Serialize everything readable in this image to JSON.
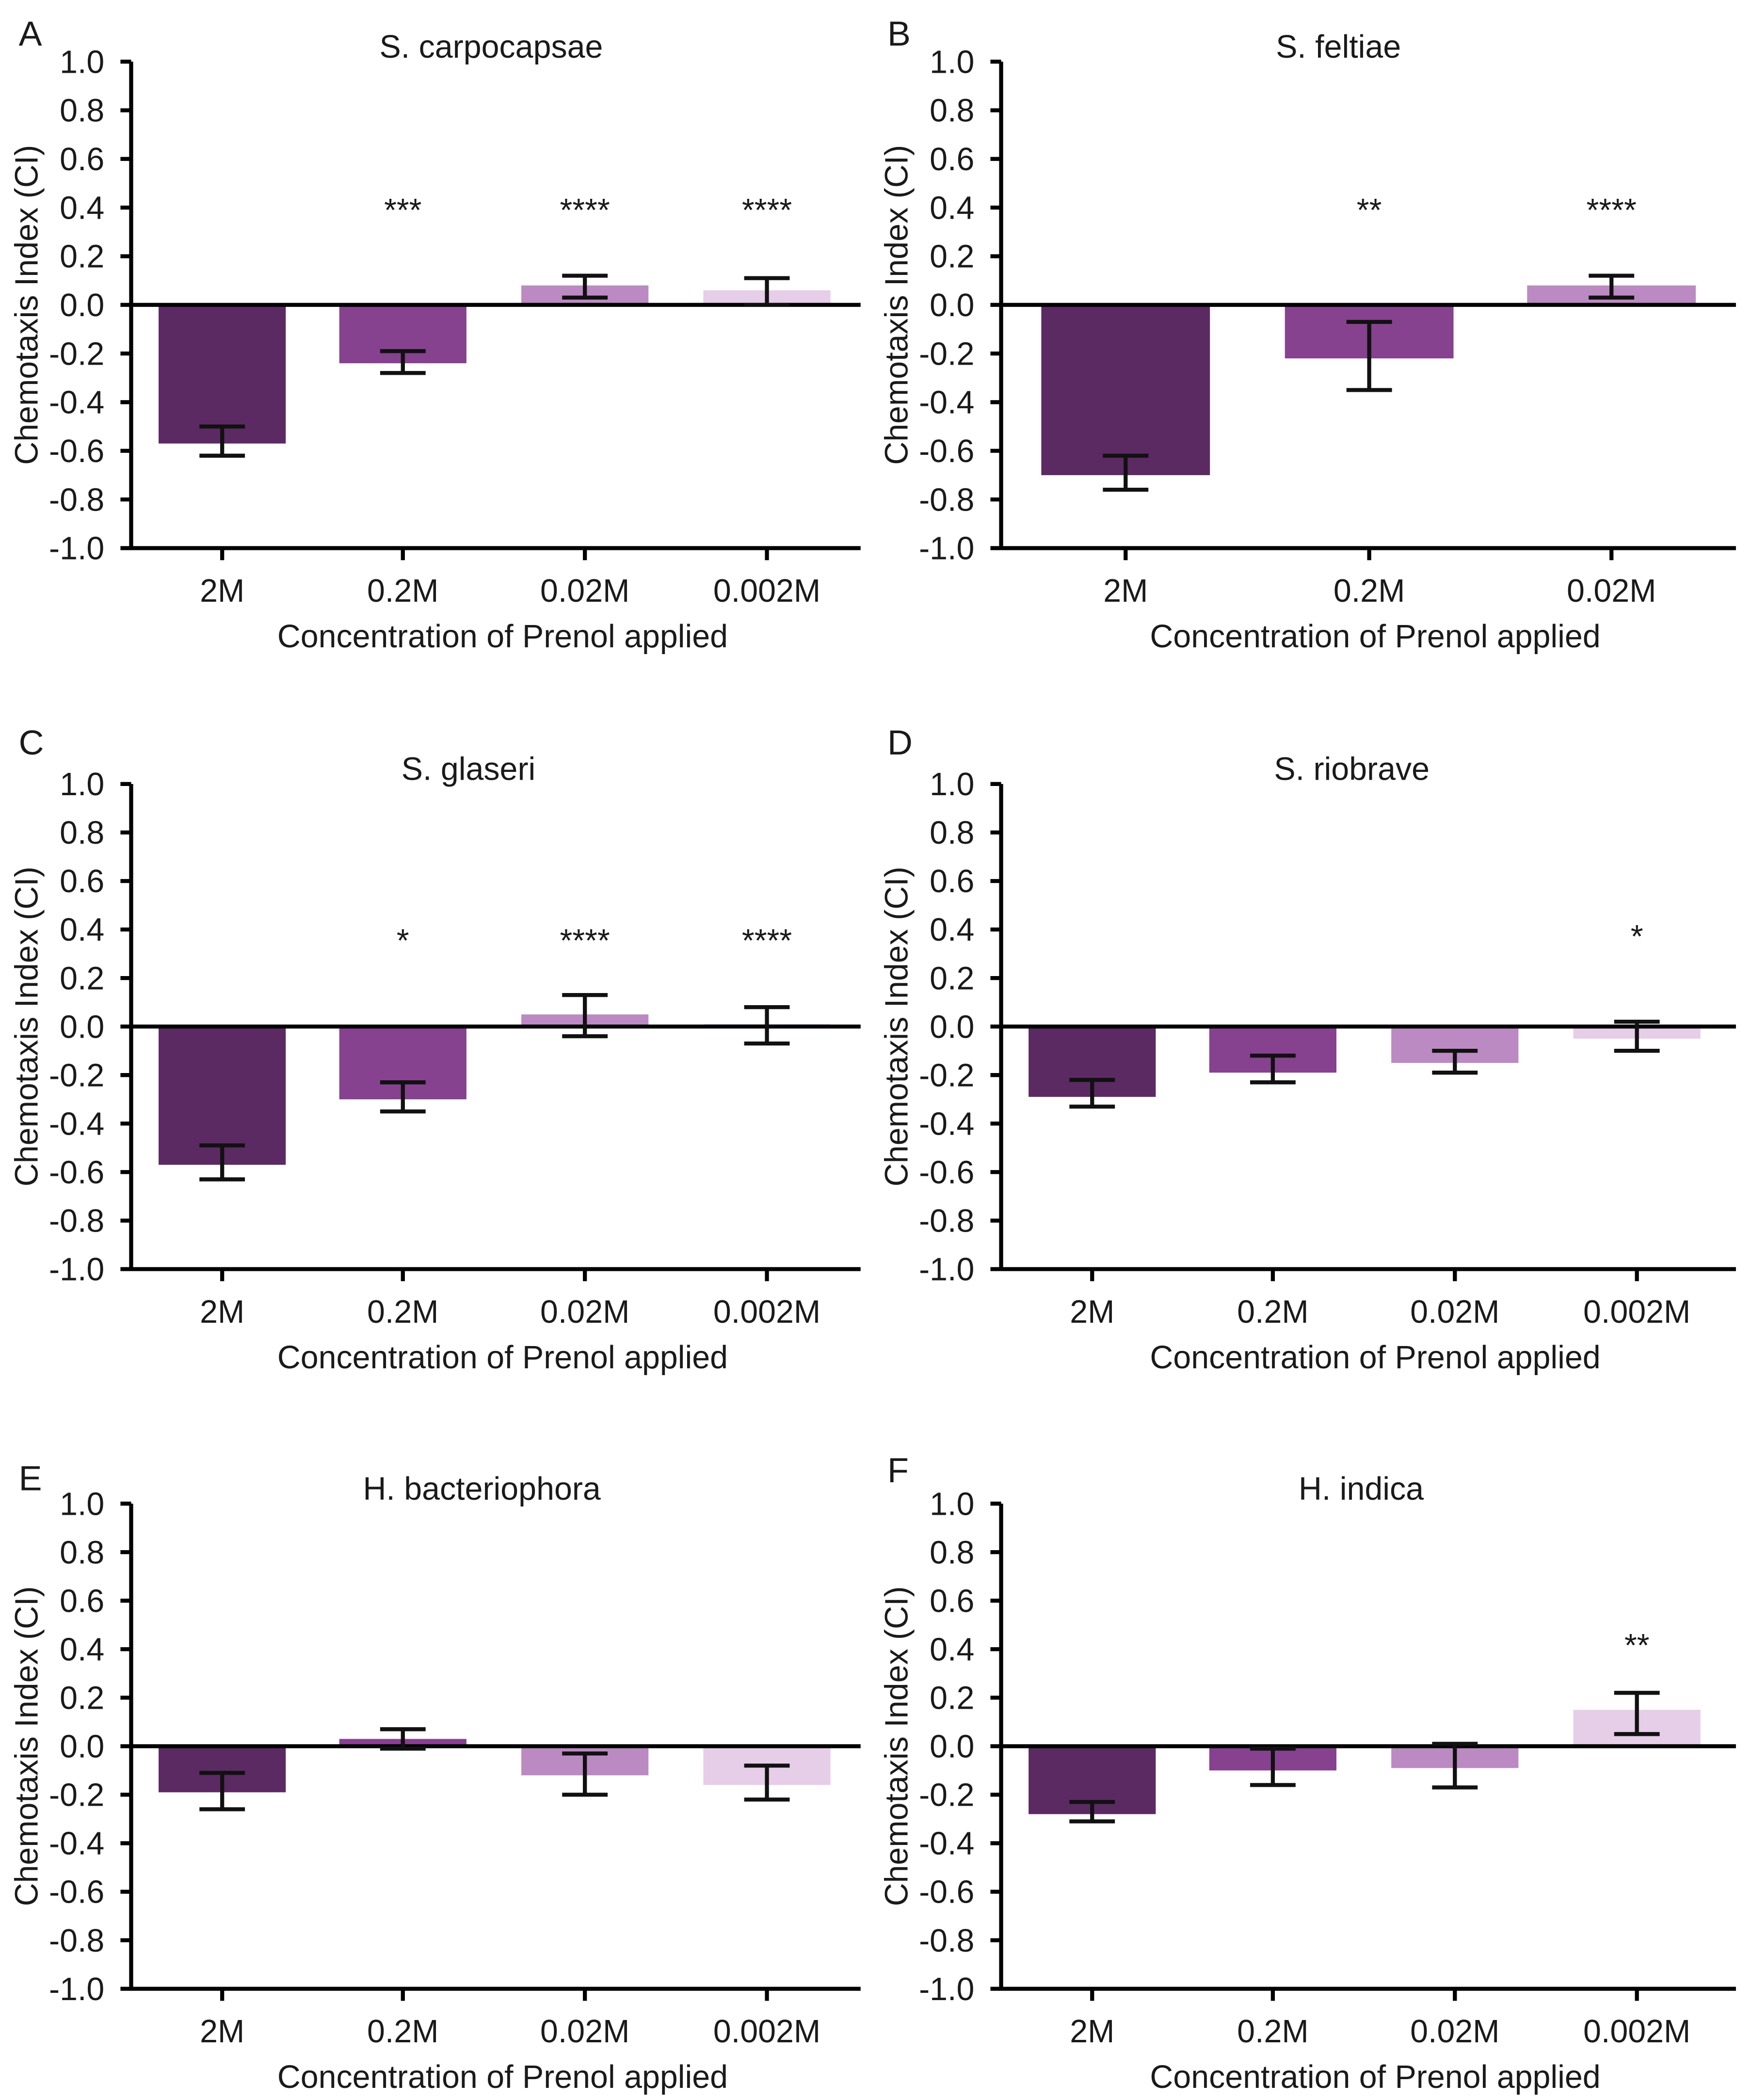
{
  "figure": {
    "ylabel": "Chemotaxis Index  (CI)",
    "xlabel": "Concentration of Prenol applied",
    "yticks": [
      "1.0",
      "0.8",
      "0.6",
      "0.4",
      "0.2",
      "0.0",
      "-0.2",
      "-0.4",
      "-0.6",
      "-0.8",
      "-1.0"
    ],
    "bar_colors": [
      "#5b2a63",
      "#86418f",
      "#bb8ac2",
      "#e6cde8"
    ],
    "axis_color": "#000000"
  },
  "chart_data": [
    {
      "panel": "A",
      "type": "bar",
      "title": "S. carpocapsae",
      "xlabel": "Concentration of Prenol applied",
      "ylabel": "Chemotaxis Index  (CI)",
      "ylim": [
        -1.0,
        1.0
      ],
      "categories": [
        "2M",
        "0.2M",
        "0.02M",
        "0.002M"
      ],
      "values": [
        -0.57,
        -0.24,
        0.08,
        0.06
      ],
      "error_low": [
        -0.62,
        -0.28,
        0.03,
        0.0
      ],
      "error_high": [
        -0.5,
        -0.19,
        0.12,
        0.11
      ],
      "significance": [
        "",
        "***",
        "****",
        "****"
      ]
    },
    {
      "panel": "B",
      "type": "bar",
      "title": "S. feltiae",
      "xlabel": "Concentration of Prenol applied",
      "ylabel": "Chemotaxis Index  (CI)",
      "ylim": [
        -1.0,
        1.0
      ],
      "categories": [
        "2M",
        "0.2M",
        "0.02M"
      ],
      "values": [
        -0.7,
        -0.22,
        0.08
      ],
      "error_low": [
        -0.76,
        -0.35,
        0.03
      ],
      "error_high": [
        -0.62,
        -0.07,
        0.12
      ],
      "significance": [
        "",
        "**",
        "****"
      ]
    },
    {
      "panel": "C",
      "type": "bar",
      "title": "S. glaseri",
      "xlabel": "Concentration of Prenol applied",
      "ylabel": "Chemotaxis Index  (CI)",
      "ylim": [
        -1.0,
        1.0
      ],
      "categories": [
        "2M",
        "0.2M",
        "0.02M",
        "0.002M"
      ],
      "values": [
        -0.57,
        -0.3,
        0.05,
        0.01
      ],
      "error_low": [
        -0.63,
        -0.35,
        -0.04,
        -0.07
      ],
      "error_high": [
        -0.49,
        -0.23,
        0.13,
        0.08
      ],
      "significance": [
        "",
        "*",
        "****",
        "****"
      ]
    },
    {
      "panel": "D",
      "type": "bar",
      "title": "S. riobrave",
      "xlabel": "Concentration of Prenol applied",
      "ylabel": "Chemotaxis Index  (CI)",
      "ylim": [
        -1.0,
        1.0
      ],
      "categories": [
        "2M",
        "0.2M",
        "0.02M",
        "0.002M"
      ],
      "values": [
        -0.29,
        -0.19,
        -0.15,
        -0.05
      ],
      "error_low": [
        -0.33,
        -0.23,
        -0.19,
        -0.1
      ],
      "error_high": [
        -0.22,
        -0.12,
        -0.1,
        0.02
      ],
      "significance": [
        "",
        "",
        "",
        "*"
      ]
    },
    {
      "panel": "E",
      "type": "bar",
      "title": "H. bacteriophora",
      "xlabel": "Concentration of Prenol applied",
      "ylabel": "Chemotaxis Index  (CI)",
      "ylim": [
        -1.0,
        1.0
      ],
      "categories": [
        "2M",
        "0.2M",
        "0.02M",
        "0.002M"
      ],
      "values": [
        -0.19,
        0.03,
        -0.12,
        -0.16
      ],
      "error_low": [
        -0.26,
        -0.01,
        -0.2,
        -0.22
      ],
      "error_high": [
        -0.11,
        0.07,
        -0.03,
        -0.08
      ],
      "significance": [
        "",
        "",
        "",
        ""
      ]
    },
    {
      "panel": "F",
      "type": "bar",
      "title": "H. indica",
      "xlabel": "Concentration of Prenol applied",
      "ylabel": "Chemotaxis Index  (CI)",
      "ylim": [
        -1.0,
        1.0
      ],
      "categories": [
        "2M",
        "0.2M",
        "0.02M",
        "0.002M"
      ],
      "values": [
        -0.28,
        -0.1,
        -0.09,
        0.15
      ],
      "error_low": [
        -0.31,
        -0.16,
        -0.17,
        0.05
      ],
      "error_high": [
        -0.23,
        -0.01,
        0.01,
        0.22
      ],
      "significance": [
        "",
        "",
        "",
        "**"
      ]
    }
  ]
}
